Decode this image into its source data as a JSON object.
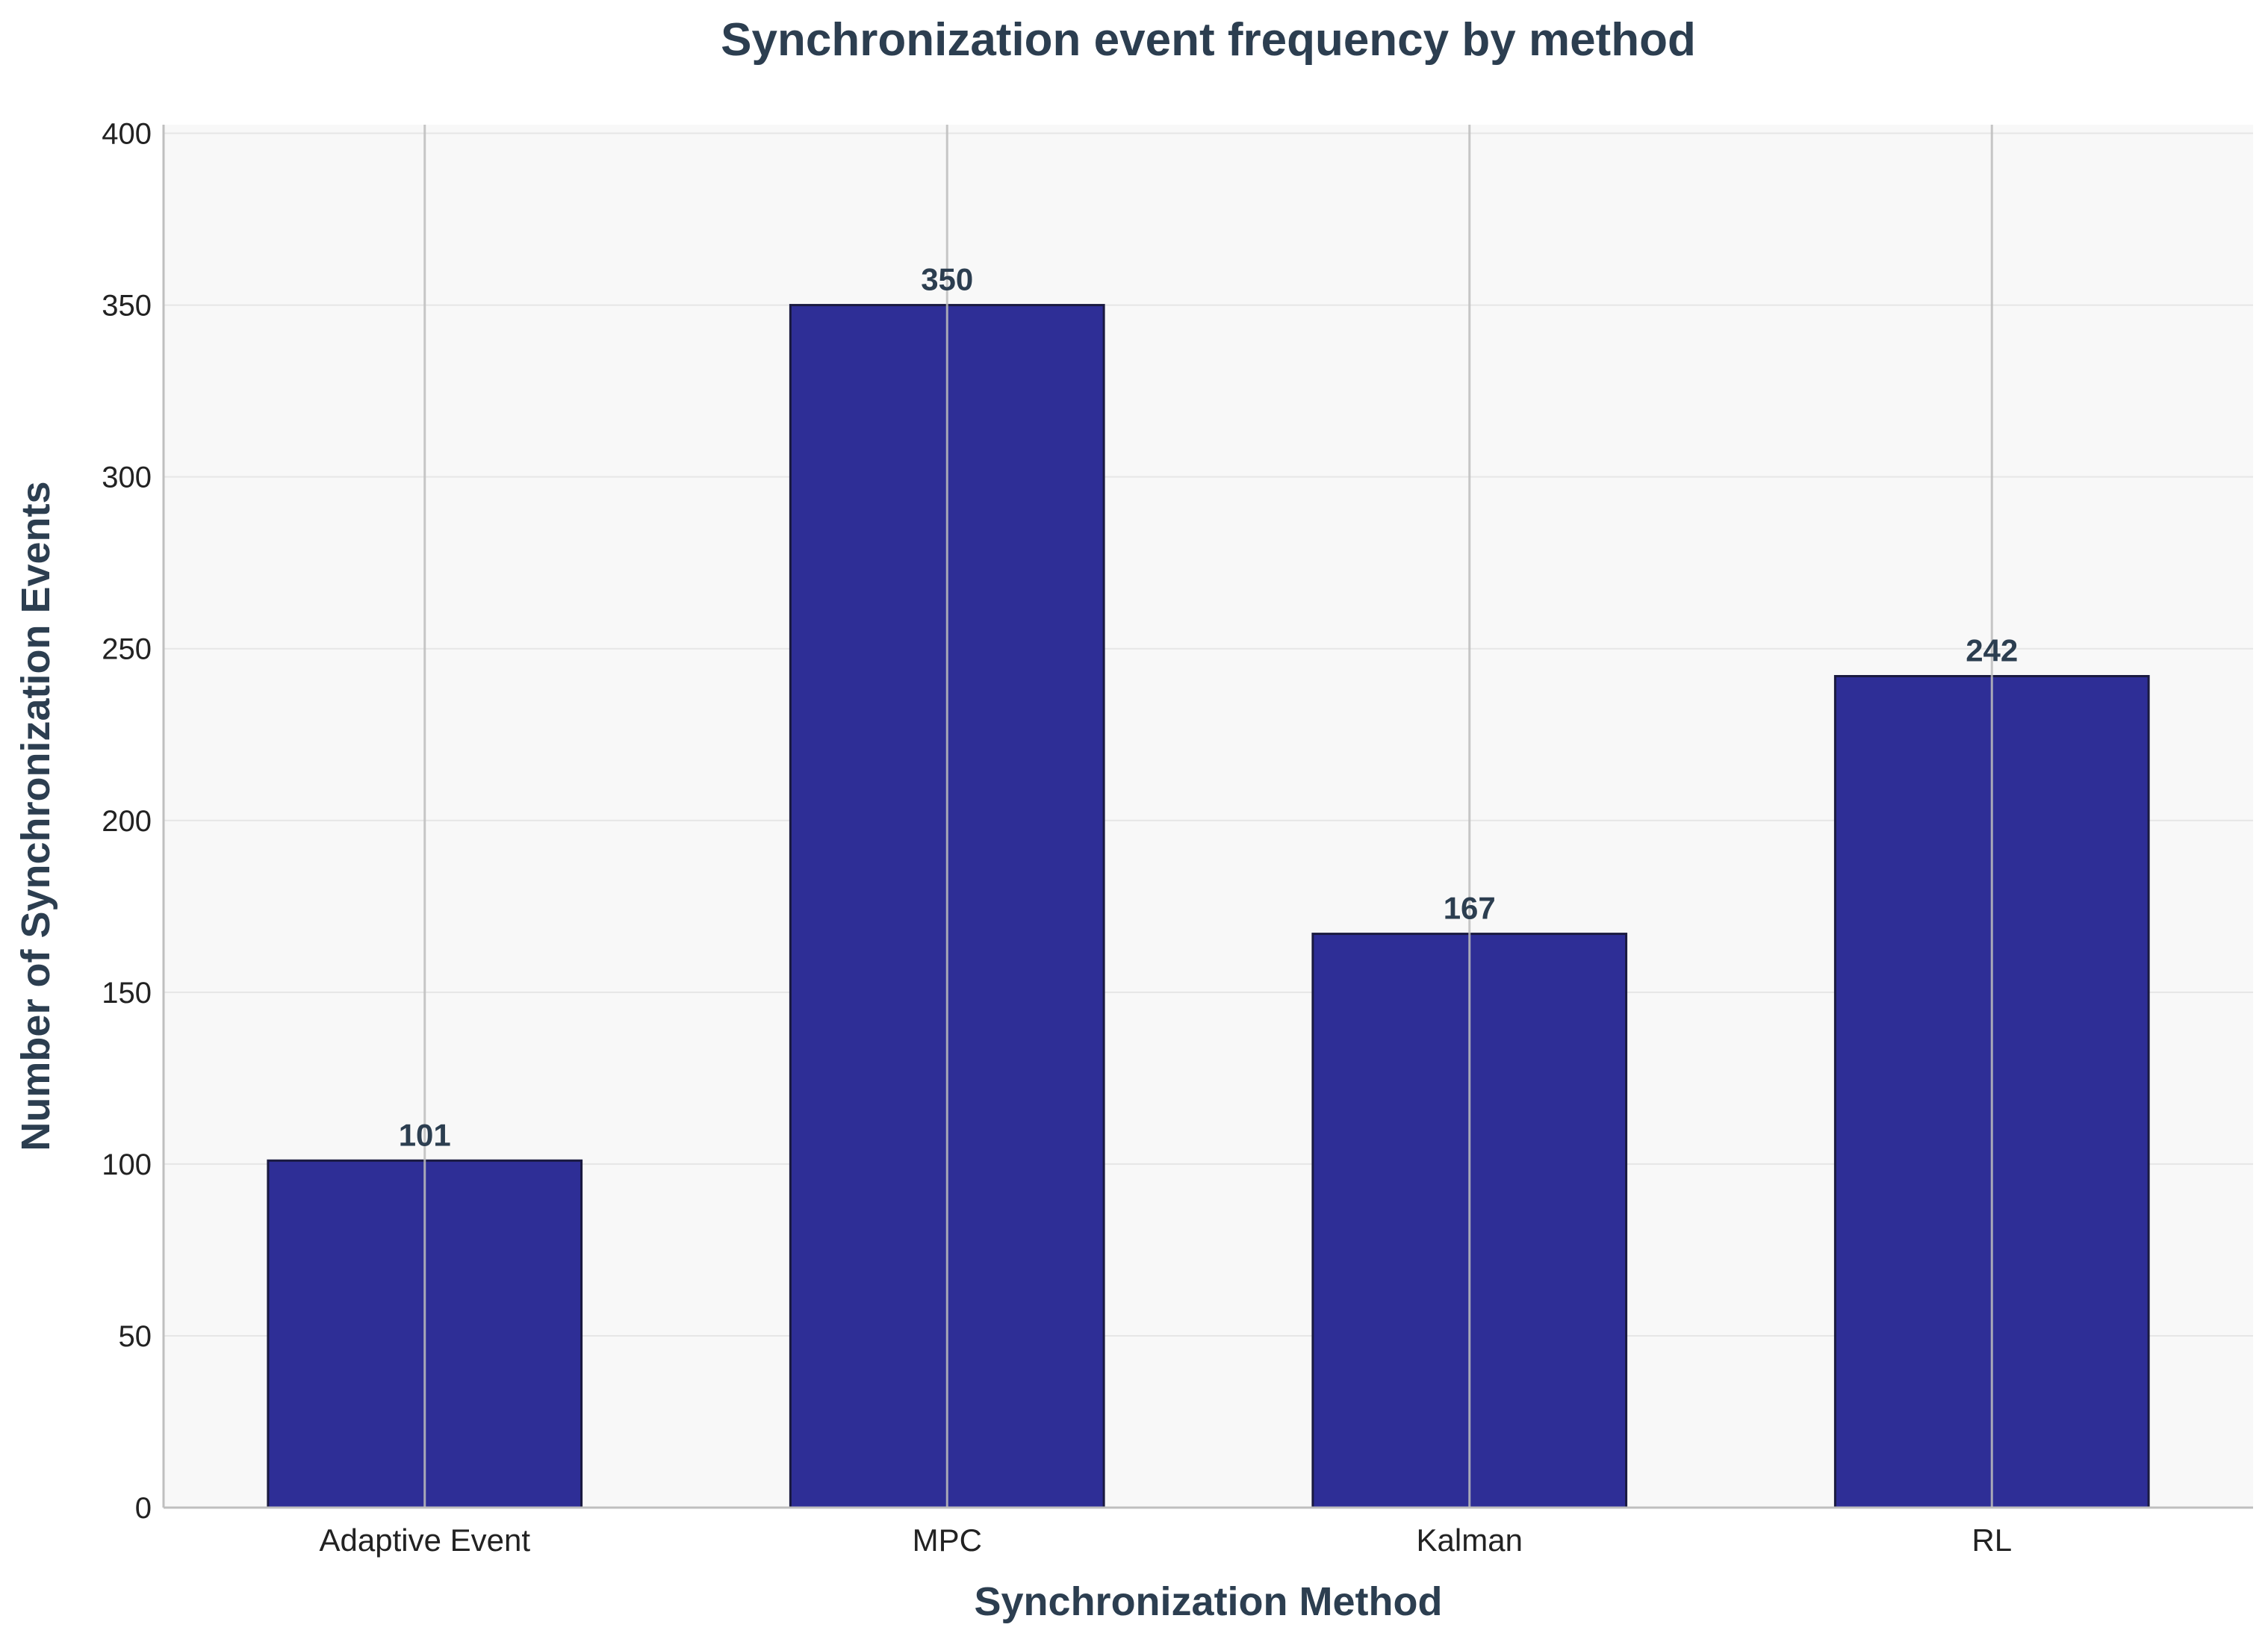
{
  "chart_data": {
    "type": "bar",
    "title": "Synchronization event frequency by method",
    "xlabel": "Synchronization Method",
    "ylabel": "Number of Synchronization Events",
    "categories": [
      "Adaptive Event",
      "MPC",
      "Kalman",
      "RL"
    ],
    "values": [
      101,
      350,
      167,
      242
    ],
    "data_labels": [
      "101",
      "350",
      "167",
      "242"
    ],
    "ylim": [
      0,
      400
    ],
    "yticks": [
      0,
      50,
      100,
      150,
      200,
      250,
      300,
      350,
      400
    ],
    "ytick_labels": [
      "0",
      "50",
      "100",
      "150",
      "200",
      "250",
      "300",
      "350",
      "400"
    ],
    "grid": true,
    "legend": "none",
    "colors": {
      "bar": "#2e2e96",
      "bar_edge": "#1a1a40",
      "plot_background": "#f8f8f8",
      "title": "#2c3e50",
      "grid": "#e6e6e6",
      "vertical_grid": "#bdbdbd",
      "axis": "#bfbfbf"
    }
  }
}
